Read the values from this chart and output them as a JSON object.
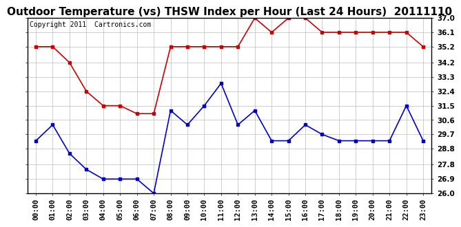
{
  "title": "Outdoor Temperature (vs) THSW Index per Hour (Last 24 Hours)  20111110",
  "copyright": "Copyright 2011  Cartronics.com",
  "x_labels": [
    "00:00",
    "01:00",
    "02:00",
    "03:00",
    "04:00",
    "05:00",
    "06:00",
    "07:00",
    "08:00",
    "09:00",
    "10:00",
    "11:00",
    "12:00",
    "13:00",
    "14:00",
    "15:00",
    "16:00",
    "17:00",
    "18:00",
    "19:00",
    "20:00",
    "21:00",
    "22:00",
    "23:00"
  ],
  "temp_data": [
    29.3,
    30.3,
    28.5,
    27.5,
    26.9,
    26.9,
    26.9,
    26.0,
    31.2,
    30.3,
    31.5,
    32.9,
    30.3,
    31.2,
    29.3,
    29.3,
    30.3,
    29.7,
    29.3,
    29.3,
    29.3,
    29.3,
    31.5,
    29.3
  ],
  "thsw_data": [
    35.2,
    35.2,
    34.2,
    32.4,
    31.5,
    31.5,
    31.0,
    31.0,
    35.2,
    35.2,
    35.2,
    35.2,
    35.2,
    37.0,
    36.1,
    37.0,
    37.0,
    36.1,
    36.1,
    36.1,
    36.1,
    36.1,
    36.1,
    35.2
  ],
  "temp_color": "#0000cc",
  "thsw_color": "#cc0000",
  "bg_color": "#ffffff",
  "plot_bg_color": "#ffffff",
  "grid_color": "#bbbbbb",
  "ylim_min": 26.0,
  "ylim_max": 37.0,
  "ytick_values": [
    26.0,
    26.9,
    27.8,
    28.8,
    29.7,
    30.6,
    31.5,
    32.4,
    33.3,
    34.2,
    35.2,
    36.1,
    37.0
  ],
  "ytick_labels": [
    "26.0",
    "26.9",
    "27.8",
    "28.8",
    "29.7",
    "30.6",
    "31.5",
    "32.4",
    "33.3",
    "34.2",
    "35.2",
    "36.1",
    "37.0"
  ],
  "title_fontsize": 11,
  "tick_fontsize": 7.5,
  "copyright_fontsize": 7,
  "marker": "s",
  "markersize": 3,
  "linewidth": 1.2
}
